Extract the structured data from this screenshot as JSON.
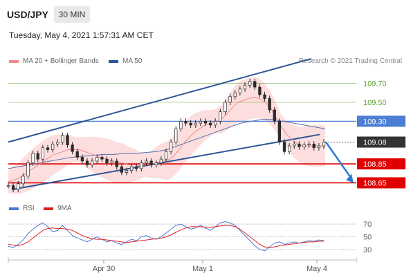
{
  "header": {
    "symbol": "USD/JPY",
    "timeframe": "30 MIN",
    "timestamp": "Tuesday, May 4, 2021 1:57:31 AM CET"
  },
  "legend": {
    "ma20": {
      "label": "MA 20 + Bollinger Bands",
      "color": "#f08a8a"
    },
    "ma50": {
      "label": "MA 50",
      "color": "#2e5597"
    },
    "credit": "Research © 2021 Trading Central"
  },
  "rsi_legend": {
    "rsi": {
      "label": "RSI",
      "color": "#4a78d0"
    },
    "ma9": {
      "label": "9MA",
      "color": "#e02020"
    }
  },
  "chart_data": [
    {
      "type": "line",
      "title": "USD/JPY",
      "ylim": [
        108.5,
        109.85
      ],
      "x_ticks": [
        "Apr 30",
        "May 1",
        "May 4"
      ],
      "current_price": {
        "value": 109.08,
        "label": "109.08",
        "color": "#333333"
      },
      "levels": [
        {
          "value": 109.7,
          "label": "109.70",
          "kind": "resistance",
          "color": "#5aa02c"
        },
        {
          "value": 109.5,
          "label": "109.50",
          "kind": "resistance",
          "color": "#5aa02c"
        },
        {
          "value": 109.3,
          "label": "109.30",
          "kind": "pivot",
          "color": "#4a7fd4"
        },
        {
          "value": 108.85,
          "label": "108.85",
          "kind": "support",
          "color": "#e00000"
        },
        {
          "value": 108.65,
          "label": "108.65",
          "kind": "support",
          "color": "#e00000"
        }
      ],
      "series": [
        {
          "name": "USD/JPY",
          "values": [
            108.62,
            108.58,
            108.64,
            108.72,
            108.86,
            108.96,
            108.9,
            109.02,
            109.0,
            109.06,
            109.08,
            109.15,
            109.05,
            108.98,
            108.92,
            108.88,
            108.84,
            108.88,
            108.92,
            108.9,
            108.86,
            108.88,
            108.82,
            108.76,
            108.78,
            108.82,
            108.8,
            108.86,
            108.88,
            108.84,
            108.86,
            108.9,
            108.98,
            109.08,
            109.22,
            109.3,
            109.28,
            109.26,
            109.28,
            109.3,
            109.28,
            109.26,
            109.3,
            109.4,
            109.5,
            109.56,
            109.6,
            109.64,
            109.68,
            109.72,
            109.66,
            109.58,
            109.54,
            109.42,
            109.3,
            109.08,
            108.98,
            109.04,
            109.06,
            109.03,
            109.05,
            109.06,
            109.02,
            109.04,
            109.08
          ]
        },
        {
          "name": "MA 20",
          "values": [
            108.66,
            108.68,
            108.7,
            108.74,
            108.78,
            108.82,
            108.86,
            108.9,
            108.94,
            108.96,
            108.98,
            109.0,
            109.0,
            109.0,
            108.98,
            108.96,
            108.94,
            108.92,
            108.9,
            108.88,
            108.86,
            108.86,
            108.84,
            108.84,
            108.83,
            108.84,
            108.84,
            108.86,
            108.88,
            108.88,
            108.92,
            108.98,
            109.06,
            109.12,
            109.18,
            109.22,
            109.26,
            109.28,
            109.3,
            109.32,
            109.38,
            109.44,
            109.5,
            109.52,
            109.54,
            109.55,
            109.54,
            109.5,
            109.44,
            109.34,
            109.24,
            109.16,
            109.1,
            109.06,
            109.04,
            109.04,
            109.04,
            109.04,
            109.04
          ]
        },
        {
          "name": "MA 50",
          "values": [
            108.8,
            108.82,
            108.84,
            108.86,
            108.88,
            108.9,
            108.92,
            108.93,
            108.94,
            108.95,
            108.95,
            108.96,
            108.96,
            108.97,
            108.98,
            109.0,
            109.04,
            109.08,
            109.12,
            109.16,
            109.2,
            109.24,
            109.28,
            109.3,
            109.32,
            109.32,
            109.3,
            109.28,
            109.26,
            109.24,
            109.22
          ]
        }
      ],
      "channel": {
        "upper": [
          [
            0,
            109.08
          ],
          [
            1,
            109.96
          ]
        ],
        "lower": [
          [
            0,
            108.58
          ],
          [
            1,
            109.16
          ]
        ]
      },
      "forecast_arrow": {
        "from": 109.08,
        "to": 108.65,
        "color": "#2a7bd6"
      }
    },
    {
      "type": "line",
      "title": "RSI",
      "ylim": [
        20,
        80
      ],
      "y_ticks": [
        70,
        50,
        30
      ],
      "series": [
        {
          "name": "RSI",
          "values": [
            35,
            33,
            38,
            45,
            55,
            62,
            68,
            72,
            66,
            58,
            60,
            68,
            60,
            52,
            48,
            45,
            42,
            46,
            50,
            46,
            42,
            44,
            40,
            38,
            42,
            46,
            44,
            50,
            52,
            48,
            46,
            50,
            56,
            62,
            68,
            70,
            66,
            62,
            64,
            68,
            64,
            60,
            66,
            72,
            74,
            72,
            68,
            60,
            52,
            44,
            36,
            30,
            28,
            34,
            40,
            42,
            38,
            40,
            42,
            40,
            42,
            44,
            43,
            45,
            44
          ]
        },
        {
          "name": "9MA",
          "values": [
            38,
            37,
            36,
            38,
            42,
            48,
            54,
            60,
            63,
            64,
            63,
            63,
            62,
            60,
            56,
            52,
            49,
            47,
            46,
            46,
            45,
            44,
            43,
            42,
            41,
            42,
            43,
            44,
            45,
            46,
            47,
            48,
            50,
            53,
            57,
            61,
            64,
            66,
            66,
            66,
            65,
            65,
            66,
            67,
            68,
            68,
            66,
            62,
            56,
            50,
            44,
            38,
            34,
            33,
            34,
            36,
            37,
            38,
            39,
            40,
            41,
            42,
            42,
            43,
            43
          ]
        }
      ]
    }
  ]
}
